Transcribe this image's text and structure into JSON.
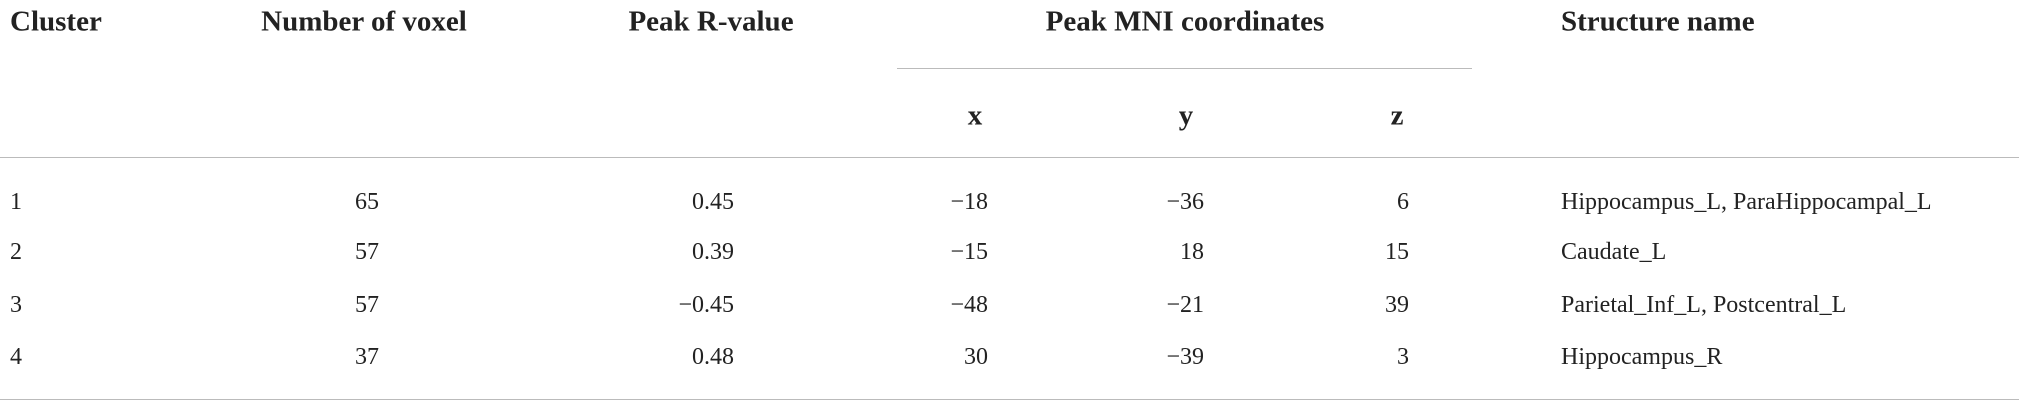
{
  "table": {
    "header": [
      "Cluster",
      "Number of voxel",
      "Peak R-value",
      "Peak MNI coordinates",
      "Structure name"
    ],
    "subheader": [
      "x",
      "y",
      "z"
    ],
    "rows": [
      [
        "1",
        "65",
        "0.45",
        "−18",
        "−36",
        "6",
        "Hippocampus_L, ParaHippocampal_L"
      ],
      [
        "2",
        "57",
        "0.39",
        "−15",
        "18",
        "15",
        "Caudate_L"
      ],
      [
        "3",
        "57",
        "−0.45",
        "−48",
        "−21",
        "39",
        "Parietal_Inf_L, Postcentral_L"
      ],
      [
        "4",
        "37",
        "0.48",
        "30",
        "−39",
        "3",
        "Hippocampus_R"
      ]
    ]
  }
}
